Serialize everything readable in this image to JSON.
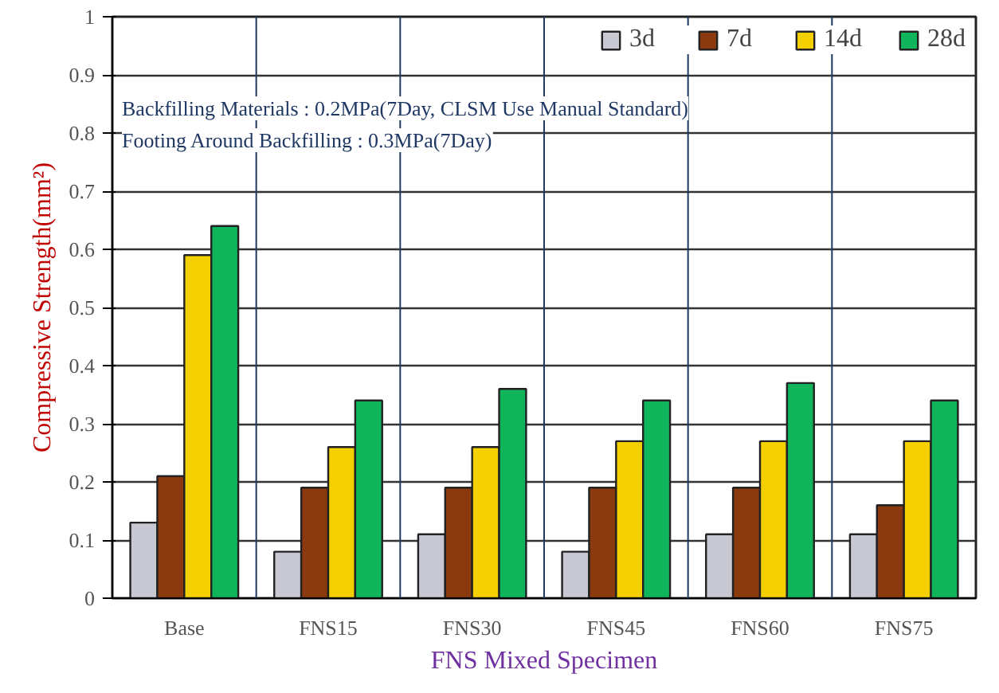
{
  "chart_data": {
    "type": "bar",
    "xlabel": "FNS Mixed Specimen",
    "ylabel": "Compressive Strength(mm²)",
    "categories": [
      "Base",
      "FNS15",
      "FNS30",
      "FNS45",
      "FNS60",
      "FNS75"
    ],
    "series": [
      {
        "name": "3d",
        "color": "#c8c8d2",
        "values": [
          0.13,
          0.08,
          0.11,
          0.08,
          0.11,
          0.11
        ]
      },
      {
        "name": "7d",
        "color": "#8b3a0f",
        "values": [
          0.21,
          0.19,
          0.19,
          0.19,
          0.19,
          0.16
        ]
      },
      {
        "name": "14d",
        "color": "#f5d000",
        "values": [
          0.59,
          0.26,
          0.26,
          0.27,
          0.27,
          0.27
        ]
      },
      {
        "name": "28d",
        "color": "#10b45a",
        "values": [
          0.64,
          0.34,
          0.36,
          0.34,
          0.37,
          0.34
        ]
      }
    ],
    "ylim": [
      0,
      1
    ],
    "yticks": [
      0,
      0.1,
      0.2,
      0.3,
      0.4,
      0.5,
      0.6,
      0.7,
      0.8,
      0.9,
      1
    ],
    "grid": true,
    "legend": "top right",
    "annotations": [
      "Backfilling Materials : 0.2MPa(7Day, CLSM Use Manual Standard)",
      "Footing Around Backfilling : 0.3MPa(7Day)"
    ]
  }
}
